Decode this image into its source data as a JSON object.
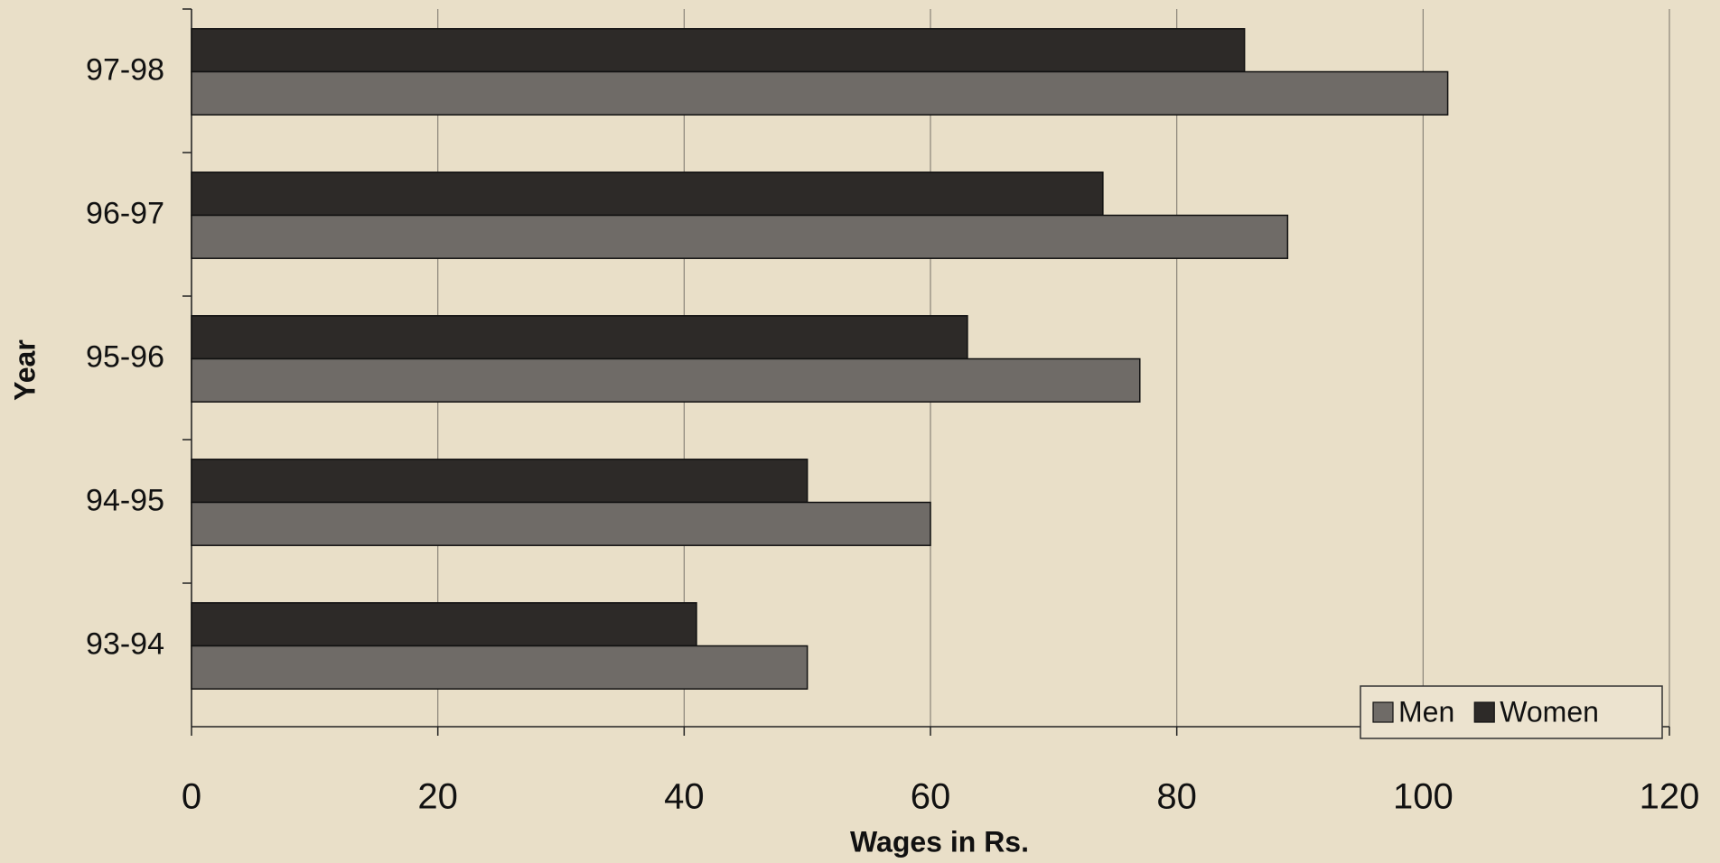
{
  "chart_data": {
    "type": "barh",
    "xlabel": "Wages in Rs.",
    "ylabel": "Year",
    "categories": [
      "93-94",
      "94-95",
      "95-96",
      "96-97",
      "97-98"
    ],
    "series": [
      {
        "name": "Men",
        "color": "#6f6b67",
        "values": [
          50,
          60,
          77,
          89,
          102
        ]
      },
      {
        "name": "Women",
        "color": "#2d2a28",
        "values": [
          41,
          50,
          63,
          74,
          85.5
        ]
      }
    ],
    "xlim": [
      0,
      120
    ],
    "xticks": [
      0,
      20,
      40,
      60,
      80,
      100,
      120
    ],
    "grid": true,
    "legend": "lower right"
  }
}
